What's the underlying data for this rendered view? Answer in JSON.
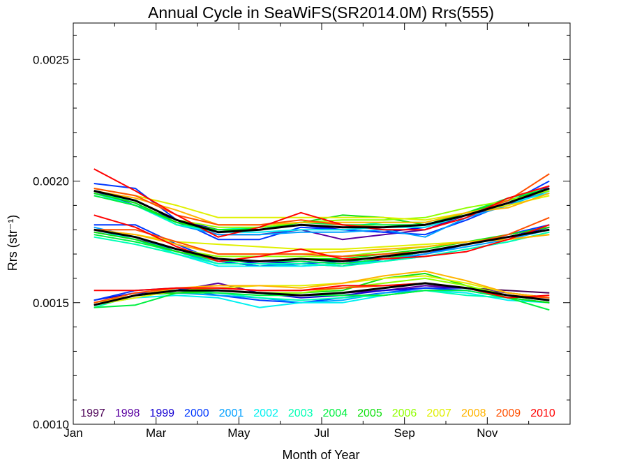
{
  "chart_data": {
    "type": "line",
    "title": "Annual Cycle in SeaWiFS(SR2014.0M) Rrs(555)",
    "xlabel": "Month of Year",
    "ylabel": "Rrs (str⁻¹)",
    "xlim": [
      0,
      12
    ],
    "ylim": [
      0.001,
      0.00265
    ],
    "x_ticks": [
      {
        "value": 0,
        "label": "Jan"
      },
      {
        "value": 2,
        "label": "Mar"
      },
      {
        "value": 4,
        "label": "May"
      },
      {
        "value": 6,
        "label": "Jul"
      },
      {
        "value": 8,
        "label": "Sep"
      },
      {
        "value": 10,
        "label": "Nov"
      }
    ],
    "y_ticks": [
      {
        "value": 0.001,
        "label": "0.0010"
      },
      {
        "value": 0.0015,
        "label": "0.0015"
      },
      {
        "value": 0.002,
        "label": "0.0020"
      },
      {
        "value": 0.0025,
        "label": "0.0025"
      }
    ],
    "x": [
      0.5,
      1.5,
      2.5,
      3.5,
      4.5,
      5.5,
      6.5,
      7.5,
      8.5,
      9.5,
      10.5,
      11.5
    ],
    "legend_placement": "bottom",
    "mean_color": "#000000",
    "series": [
      {
        "name": "1997",
        "color": "#4b0055",
        "upper": [
          null,
          null,
          null,
          null,
          null,
          null,
          null,
          null,
          0.0018,
          0.00186,
          0.0019,
          0.00197
        ],
        "middle": [
          null,
          null,
          null,
          null,
          null,
          null,
          null,
          null,
          0.0017,
          0.00174,
          0.00177,
          0.00181
        ],
        "lower": [
          null,
          null,
          null,
          null,
          null,
          null,
          null,
          null,
          0.00157,
          0.00156,
          0.00155,
          0.00154
        ]
      },
      {
        "name": "1998",
        "color": "#5a00a0",
        "upper": [
          0.00195,
          0.0019,
          0.00183,
          0.00178,
          0.00178,
          0.0018,
          0.00176,
          0.00178,
          0.0018,
          0.00186,
          0.0019,
          0.00197
        ],
        "middle": [
          0.00179,
          0.00176,
          0.00172,
          0.00167,
          0.00165,
          0.00166,
          0.00165,
          0.00168,
          0.0017,
          0.00174,
          0.00178,
          0.00181
        ],
        "lower": [
          0.0015,
          0.00153,
          0.00155,
          0.00158,
          0.00154,
          0.00153,
          0.00154,
          0.00155,
          0.00157,
          0.00156,
          0.00154,
          0.00152
        ]
      },
      {
        "name": "1999",
        "color": "#1400d2",
        "upper": [
          0.00196,
          0.0019,
          0.00184,
          0.0018,
          0.0018,
          0.00182,
          0.0018,
          0.00179,
          0.00181,
          0.00186,
          0.0019,
          0.00198
        ],
        "middle": [
          0.0018,
          0.00177,
          0.00172,
          0.00168,
          0.00166,
          0.00167,
          0.00166,
          0.00168,
          0.00171,
          0.00174,
          0.00177,
          0.00181
        ],
        "lower": [
          0.00151,
          0.00154,
          0.00154,
          0.00155,
          0.00154,
          0.00152,
          0.00153,
          0.00155,
          0.00156,
          0.00156,
          0.00153,
          0.00151
        ]
      },
      {
        "name": "2000",
        "color": "#0038ff",
        "upper": [
          0.00199,
          0.00197,
          0.00184,
          0.00176,
          0.00176,
          0.00181,
          0.0018,
          0.00179,
          0.00178,
          0.00184,
          0.00191,
          0.002
        ],
        "middle": [
          0.00182,
          0.00182,
          0.00174,
          0.00167,
          0.00165,
          0.00166,
          0.00167,
          0.00167,
          0.0017,
          0.00174,
          0.00178,
          0.00182
        ],
        "lower": [
          0.00151,
          0.00155,
          0.00156,
          0.00153,
          0.00151,
          0.0015,
          0.00152,
          0.00154,
          0.00156,
          0.00155,
          0.00152,
          0.0015
        ]
      },
      {
        "name": "2001",
        "color": "#00a0ff",
        "upper": [
          0.00196,
          0.00191,
          0.00182,
          0.00178,
          0.00178,
          0.00179,
          0.00179,
          0.0018,
          0.00177,
          0.00185,
          0.0019,
          0.00196
        ],
        "middle": [
          0.00181,
          0.00177,
          0.00171,
          0.00166,
          0.00166,
          0.00165,
          0.00166,
          0.00168,
          0.0017,
          0.00173,
          0.00176,
          0.0018
        ],
        "lower": [
          0.0015,
          0.00153,
          0.00154,
          0.00153,
          0.00152,
          0.0015,
          0.00151,
          0.00154,
          0.00155,
          0.00155,
          0.00152,
          0.0015
        ]
      },
      {
        "name": "2002",
        "color": "#00f0f0",
        "upper": [
          0.00195,
          0.0019,
          0.00182,
          0.00179,
          0.00179,
          0.0018,
          0.0018,
          0.00181,
          0.00181,
          0.00186,
          0.00191,
          0.00195
        ],
        "middle": [
          0.0018,
          0.00176,
          0.0017,
          0.00165,
          0.00165,
          0.00165,
          0.00166,
          0.00167,
          0.00169,
          0.00172,
          0.00175,
          0.00179
        ],
        "lower": [
          0.00149,
          0.00152,
          0.00153,
          0.00152,
          0.00148,
          0.0015,
          0.0015,
          0.00153,
          0.00155,
          0.00154,
          0.00151,
          0.0015
        ]
      },
      {
        "name": "2003",
        "color": "#00ffb4",
        "upper": [
          0.00196,
          0.00191,
          0.00182,
          0.0018,
          0.00181,
          0.00182,
          0.00181,
          0.00183,
          0.00183,
          0.00187,
          0.00192,
          0.00196
        ],
        "middle": [
          0.00177,
          0.00174,
          0.0017,
          0.00166,
          0.00166,
          0.00166,
          0.00165,
          0.00167,
          0.00169,
          0.00172,
          0.00175,
          0.00179
        ],
        "lower": [
          0.00148,
          0.00153,
          0.00155,
          0.00154,
          0.00152,
          0.00151,
          0.00152,
          0.00153,
          0.00155,
          0.00153,
          0.00152,
          0.0015
        ]
      },
      {
        "name": "2004",
        "color": "#00f040",
        "upper": [
          0.00194,
          0.0019,
          0.00183,
          0.00179,
          0.00181,
          0.00183,
          0.00182,
          0.00182,
          0.00182,
          0.00187,
          0.00193,
          0.00197
        ],
        "middle": [
          0.00178,
          0.00175,
          0.00171,
          0.00167,
          0.00167,
          0.00167,
          0.00166,
          0.00168,
          0.00171,
          0.00174,
          0.00177,
          0.0018
        ],
        "lower": [
          0.00148,
          0.00149,
          0.00154,
          0.00154,
          0.00153,
          0.00153,
          0.00153,
          0.00153,
          0.00155,
          0.00155,
          0.00152,
          0.00147
        ]
      },
      {
        "name": "2005",
        "color": "#10e010",
        "upper": [
          0.00195,
          0.00191,
          0.00183,
          0.0018,
          0.0018,
          0.00183,
          0.00186,
          0.00185,
          0.00182,
          0.00187,
          0.00192,
          0.00197
        ],
        "middle": [
          0.00179,
          0.00176,
          0.00171,
          0.00168,
          0.00167,
          0.00168,
          0.00168,
          0.0017,
          0.00172,
          0.00175,
          0.00178,
          0.00181
        ],
        "lower": [
          0.00149,
          0.00153,
          0.00154,
          0.00155,
          0.00154,
          0.00154,
          0.00155,
          0.0016,
          0.00162,
          0.00157,
          0.00152,
          0.0015
        ]
      },
      {
        "name": "2006",
        "color": "#90ff00",
        "upper": [
          0.00196,
          0.00192,
          0.00184,
          0.00181,
          0.00181,
          0.00183,
          0.00184,
          0.00184,
          0.00185,
          0.00189,
          0.00192,
          0.00196
        ],
        "middle": [
          0.0018,
          0.00177,
          0.00172,
          0.00169,
          0.00169,
          0.00169,
          0.00169,
          0.00171,
          0.00173,
          0.00175,
          0.00177,
          0.0018
        ],
        "lower": [
          0.0015,
          0.00153,
          0.00155,
          0.00155,
          0.00154,
          0.00154,
          0.00156,
          0.00158,
          0.0016,
          0.00157,
          0.00153,
          0.00151
        ]
      },
      {
        "name": "2007",
        "color": "#e0f000",
        "upper": [
          0.00197,
          0.00194,
          0.0019,
          0.00185,
          0.00185,
          0.00185,
          0.00185,
          0.00185,
          0.00184,
          0.00187,
          0.0019,
          0.00194
        ],
        "middle": [
          0.0018,
          0.00178,
          0.00175,
          0.00174,
          0.00173,
          0.00172,
          0.00172,
          0.00173,
          0.00174,
          0.00175,
          0.00176,
          0.00178
        ],
        "lower": [
          0.00149,
          0.00152,
          0.00155,
          0.00156,
          0.00157,
          0.00157,
          0.00158,
          0.0016,
          0.00161,
          0.00158,
          0.00154,
          0.00152
        ]
      },
      {
        "name": "2008",
        "color": "#ffb400",
        "upper": [
          0.00196,
          0.00193,
          0.00188,
          0.00182,
          0.00182,
          0.00183,
          0.00183,
          0.00183,
          0.00183,
          0.00187,
          0.00189,
          0.00195
        ],
        "middle": [
          0.0018,
          0.00178,
          0.00174,
          0.0017,
          0.0017,
          0.0017,
          0.00171,
          0.00172,
          0.00173,
          0.00175,
          0.00176,
          0.00178
        ],
        "lower": [
          0.0015,
          0.00153,
          0.00156,
          0.00157,
          0.00157,
          0.00156,
          0.00158,
          0.00161,
          0.00163,
          0.00159,
          0.00154,
          0.00152
        ]
      },
      {
        "name": "2009",
        "color": "#ff5000",
        "upper": [
          0.00197,
          0.00194,
          0.00186,
          0.00182,
          0.00182,
          0.00184,
          0.00182,
          0.00181,
          0.00182,
          0.00186,
          0.00192,
          0.00203
        ],
        "middle": [
          0.0018,
          0.0018,
          0.00175,
          0.0017,
          0.0017,
          0.0017,
          0.00169,
          0.0017,
          0.00171,
          0.00174,
          0.00178,
          0.00185
        ],
        "lower": [
          0.0015,
          0.00154,
          0.00156,
          0.00156,
          0.00155,
          0.00155,
          0.00156,
          0.00157,
          0.00158,
          0.00156,
          0.00153,
          0.00152
        ]
      },
      {
        "name": "2010",
        "color": "#ff0000",
        "upper": [
          0.00205,
          0.00196,
          0.00186,
          0.00177,
          0.00181,
          0.00187,
          0.00182,
          0.0018,
          0.0018,
          0.00185,
          0.00193,
          0.00198
        ],
        "middle": [
          0.00186,
          0.00181,
          0.00173,
          0.00167,
          0.00169,
          0.00172,
          0.00168,
          0.00168,
          0.00169,
          0.00171,
          0.00176,
          0.00182
        ],
        "lower": [
          0.00155,
          0.00155,
          0.00156,
          0.00156,
          0.00155,
          0.00155,
          0.00157,
          0.00157,
          0.00158,
          0.00156,
          0.00152,
          0.00153
        ]
      }
    ],
    "mean": {
      "upper": [
        0.00196,
        0.00192,
        0.00184,
        0.00179,
        0.0018,
        0.00182,
        0.00181,
        0.00181,
        0.00182,
        0.00186,
        0.00191,
        0.00197
      ],
      "middle": [
        0.0018,
        0.00177,
        0.00172,
        0.00168,
        0.00167,
        0.00168,
        0.00167,
        0.00169,
        0.00171,
        0.00174,
        0.00177,
        0.0018
      ],
      "lower": [
        0.00149,
        0.00153,
        0.00155,
        0.00155,
        0.00154,
        0.00153,
        0.00154,
        0.00156,
        0.00158,
        0.00156,
        0.00153,
        0.00151
      ]
    }
  }
}
